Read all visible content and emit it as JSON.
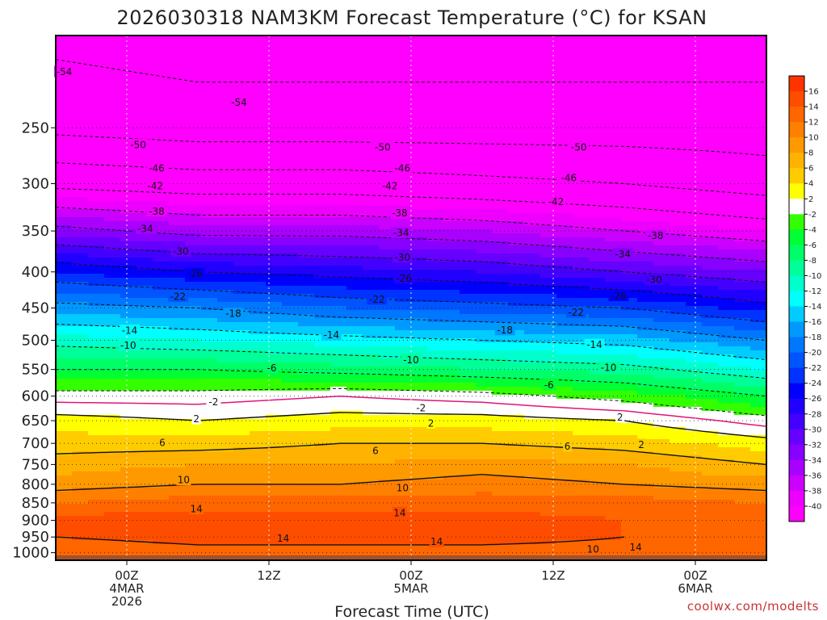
{
  "chart_data": {
    "type": "heatmap",
    "title": "2026030318 NAM3KM Forecast Temperature (°C) for KSAN",
    "xlabel": "Forecast Time (UTC)",
    "ylabel": "",
    "credit": "coolwx.com/modelts",
    "y_axis": {
      "scale": "log-pressure",
      "unit": "hPa",
      "range": [
        1025,
        185
      ],
      "ticks": [
        250,
        300,
        350,
        400,
        450,
        500,
        550,
        600,
        650,
        700,
        750,
        800,
        850,
        900,
        950,
        1000
      ],
      "tick_labels": [
        "250",
        "300",
        "350",
        "400",
        "450",
        "500",
        "550",
        "600",
        "650",
        "700",
        "750",
        "800",
        "850",
        "900",
        "950",
        "1000"
      ]
    },
    "x_axis": {
      "range_hours": [
        -5,
        45
      ],
      "ticks": [
        {
          "hour": 0,
          "lines": [
            "00Z",
            "4MAR",
            "2026"
          ]
        },
        {
          "hour": 10,
          "lines": [
            "12Z"
          ]
        },
        {
          "hour": 20,
          "lines": [
            "00Z",
            "5MAR"
          ]
        },
        {
          "hour": 30,
          "lines": [
            "12Z"
          ]
        },
        {
          "hour": 40,
          "lines": [
            "00Z",
            "6MAR"
          ]
        }
      ]
    },
    "profile_pressures": [
      1000,
      950,
      900,
      850,
      800,
      750,
      700,
      650,
      600,
      550,
      500,
      450,
      400,
      350,
      300,
      250,
      200
    ],
    "profiles": [
      {
        "hour": -5,
        "temps": [
          12,
          14,
          15,
          12,
          9,
          7,
          5,
          3,
          -1,
          -6,
          -11,
          -17,
          -24,
          -33,
          -43,
          -51,
          -54
        ]
      },
      {
        "hour": 5,
        "temps": [
          13,
          15,
          15,
          13,
          10,
          8,
          5,
          2,
          -1,
          -6,
          -12,
          -18,
          -26,
          -35,
          -44,
          -52,
          -55
        ]
      },
      {
        "hour": 15,
        "temps": [
          13,
          15,
          15,
          13,
          10,
          8,
          6,
          3,
          0,
          -7,
          -13,
          -20,
          -27,
          -35,
          -44,
          -52,
          -55
        ]
      },
      {
        "hour": 25,
        "temps": [
          13,
          15,
          15,
          13,
          11,
          9,
          6,
          3,
          -1,
          -8,
          -14,
          -21,
          -28,
          -36,
          -45,
          -52,
          -55
        ]
      },
      {
        "hour": 35,
        "temps": [
          13,
          14,
          14,
          13,
          10,
          8,
          5,
          2,
          -3,
          -9,
          -15,
          -22,
          -30,
          -38,
          -46,
          -52,
          -55
        ]
      },
      {
        "hour": 45,
        "temps": [
          13,
          13,
          13,
          12,
          9,
          6,
          3,
          -1,
          -6,
          -12,
          -18,
          -25,
          -32,
          -40,
          -48,
          -52,
          -55
        ]
      }
    ],
    "contour_labels": [
      {
        "value": "-54",
        "hour": -4.4,
        "p": 208
      },
      {
        "value": "-54",
        "hour": 7.9,
        "p": 230
      },
      {
        "value": "-50",
        "hour": 0.8,
        "p": 264
      },
      {
        "value": "-50",
        "hour": 18.0,
        "p": 266
      },
      {
        "value": "-50",
        "hour": 31.8,
        "p": 266
      },
      {
        "value": "-46",
        "hour": 2.1,
        "p": 285
      },
      {
        "value": "-46",
        "hour": 19.4,
        "p": 285
      },
      {
        "value": "-46",
        "hour": 31.1,
        "p": 294
      },
      {
        "value": "-42",
        "hour": 2.0,
        "p": 302
      },
      {
        "value": "-42",
        "hour": 18.5,
        "p": 302
      },
      {
        "value": "-42",
        "hour": 30.2,
        "p": 318
      },
      {
        "value": "-38",
        "hour": 2.1,
        "p": 328
      },
      {
        "value": "-38",
        "hour": 19.2,
        "p": 330
      },
      {
        "value": "-38",
        "hour": 37.2,
        "p": 355
      },
      {
        "value": "-34",
        "hour": 1.3,
        "p": 347
      },
      {
        "value": "-34",
        "hour": 19.3,
        "p": 352
      },
      {
        "value": "-34",
        "hour": 34.9,
        "p": 377
      },
      {
        "value": "-30",
        "hour": 3.8,
        "p": 374
      },
      {
        "value": "-30",
        "hour": 19.4,
        "p": 381
      },
      {
        "value": "-30",
        "hour": 37.1,
        "p": 410
      },
      {
        "value": "-26",
        "hour": 4.8,
        "p": 402
      },
      {
        "value": "-26",
        "hour": 19.5,
        "p": 408
      },
      {
        "value": "-26",
        "hour": 34.6,
        "p": 432
      },
      {
        "value": "-22",
        "hour": 3.6,
        "p": 433
      },
      {
        "value": "-22",
        "hour": 17.6,
        "p": 437
      },
      {
        "value": "-22",
        "hour": 31.6,
        "p": 456
      },
      {
        "value": "-18",
        "hour": 7.5,
        "p": 458
      },
      {
        "value": "-18",
        "hour": 26.6,
        "p": 483
      },
      {
        "value": "-14",
        "hour": 0.2,
        "p": 484
      },
      {
        "value": "-14",
        "hour": 14.4,
        "p": 491
      },
      {
        "value": "-14",
        "hour": 32.9,
        "p": 507
      },
      {
        "value": "-10",
        "hour": 0.1,
        "p": 508
      },
      {
        "value": "-10",
        "hour": 20.0,
        "p": 533
      },
      {
        "value": "-10",
        "hour": 33.9,
        "p": 546
      },
      {
        "value": "-6",
        "hour": 10.2,
        "p": 547
      },
      {
        "value": "-6",
        "hour": 29.7,
        "p": 578
      },
      {
        "value": "-2",
        "hour": 6.1,
        "p": 611
      },
      {
        "value": "-2",
        "hour": 20.7,
        "p": 623
      },
      {
        "value": "2",
        "hour": 4.9,
        "p": 646
      },
      {
        "value": "2",
        "hour": 21.4,
        "p": 655
      },
      {
        "value": "2",
        "hour": 34.7,
        "p": 642
      },
      {
        "value": "2",
        "hour": 36.2,
        "p": 702
      },
      {
        "value": "6",
        "hour": 2.5,
        "p": 698
      },
      {
        "value": "6",
        "hour": 17.5,
        "p": 716
      },
      {
        "value": "6",
        "hour": 31.0,
        "p": 706
      },
      {
        "value": "10",
        "hour": 4.0,
        "p": 788
      },
      {
        "value": "10",
        "hour": 19.4,
        "p": 809
      },
      {
        "value": "10",
        "hour": 32.8,
        "p": 988
      },
      {
        "value": "14",
        "hour": 4.9,
        "p": 866
      },
      {
        "value": "14",
        "hour": 19.2,
        "p": 877
      },
      {
        "value": "14",
        "hour": 11.0,
        "p": 953
      },
      {
        "value": "14",
        "hour": 21.8,
        "p": 964
      },
      {
        "value": "14",
        "hour": 35.8,
        "p": 981
      }
    ],
    "colorbar": {
      "labels": [
        "16",
        "14",
        "12",
        "10",
        "8",
        "6",
        "4",
        "2",
        "-2",
        "-4",
        "-6",
        "-8",
        "-10",
        "-12",
        "-14",
        "-16",
        "-18",
        "-20",
        "-22",
        "-24",
        "-26",
        "-28",
        "-30",
        "-32",
        "-34",
        "-36",
        "-38",
        "-40"
      ],
      "bins": [
        {
          "min": 16,
          "max": 18,
          "color": "#ff3300"
        },
        {
          "min": 14,
          "max": 16,
          "color": "#ff4d00"
        },
        {
          "min": 12,
          "max": 14,
          "color": "#ff6600"
        },
        {
          "min": 10,
          "max": 12,
          "color": "#ff8000"
        },
        {
          "min": 8,
          "max": 10,
          "color": "#ff9900"
        },
        {
          "min": 6,
          "max": 8,
          "color": "#ffb300"
        },
        {
          "min": 4,
          "max": 6,
          "color": "#ffcc00"
        },
        {
          "min": 2,
          "max": 4,
          "color": "#ffff00"
        },
        {
          "min": -2,
          "max": 2,
          "color": "#ffffff"
        },
        {
          "min": -4,
          "max": -2,
          "color": "#33ff00"
        },
        {
          "min": -6,
          "max": -4,
          "color": "#00ff33"
        },
        {
          "min": -8,
          "max": -6,
          "color": "#00ff66"
        },
        {
          "min": -10,
          "max": -8,
          "color": "#00ff99"
        },
        {
          "min": -12,
          "max": -10,
          "color": "#00ffcc"
        },
        {
          "min": -14,
          "max": -12,
          "color": "#00ffff"
        },
        {
          "min": -16,
          "max": -14,
          "color": "#00ccff"
        },
        {
          "min": -18,
          "max": -16,
          "color": "#0099ff"
        },
        {
          "min": -20,
          "max": -18,
          "color": "#0077ff"
        },
        {
          "min": -22,
          "max": -20,
          "color": "#0055ff"
        },
        {
          "min": -24,
          "max": -22,
          "color": "#0033ff"
        },
        {
          "min": -26,
          "max": -24,
          "color": "#0000ff"
        },
        {
          "min": -28,
          "max": -26,
          "color": "#2200ff"
        },
        {
          "min": -30,
          "max": -28,
          "color": "#4400ff"
        },
        {
          "min": -32,
          "max": -30,
          "color": "#6600ff"
        },
        {
          "min": -34,
          "max": -32,
          "color": "#8800ff"
        },
        {
          "min": -36,
          "max": -34,
          "color": "#aa00ff"
        },
        {
          "min": -38,
          "max": -36,
          "color": "#cc00ff"
        },
        {
          "min": -40,
          "max": -38,
          "color": "#ee00ff"
        },
        {
          "min": -99,
          "max": -40,
          "color": "#ff00ff"
        }
      ]
    },
    "ground_color": "#a0522d",
    "freezing_line_color": "#e0147a"
  }
}
